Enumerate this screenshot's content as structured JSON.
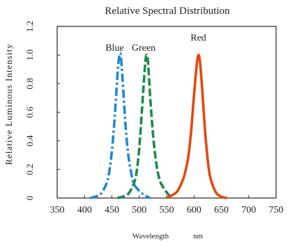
{
  "chart_data": {
    "type": "line",
    "title": "Relative Spectral Distribution",
    "xlabel": "Wavelength",
    "xlabel_unit": "nm",
    "ylabel": "Relative Luminous Intensity",
    "xlim": [
      350,
      750
    ],
    "ylim": [
      0,
      1.2
    ],
    "xticks": [
      350,
      400,
      450,
      500,
      550,
      600,
      650,
      700,
      750
    ],
    "yticks": [
      {
        "value": 0,
        "label": "0"
      },
      {
        "value": 0.2,
        "label": "0.2"
      },
      {
        "value": 0.4,
        "label": "0.4"
      },
      {
        "value": 0.6,
        "label": "0.6"
      },
      {
        "value": 0.8,
        "label": "0.8"
      },
      {
        "value": 1.0,
        "label": "1.0"
      },
      {
        "value": 1.2,
        "label": "1.2"
      }
    ],
    "grid": false,
    "series": [
      {
        "name": "Blue",
        "color": "#1f88d4",
        "dash": "dash-dot",
        "x": [
          410,
          420,
          430,
          440,
          445,
          450,
          455,
          460,
          463,
          466,
          470,
          475,
          480,
          485,
          490,
          500,
          510,
          520
        ],
        "y": [
          0.0,
          0.01,
          0.03,
          0.1,
          0.18,
          0.33,
          0.56,
          0.85,
          0.98,
          1.0,
          0.8,
          0.5,
          0.3,
          0.18,
          0.1,
          0.05,
          0.02,
          0.0
        ]
      },
      {
        "name": "Green",
        "color": "#1a8c4a",
        "dash": "dashed",
        "x": [
          460,
          470,
          480,
          490,
          495,
          500,
          505,
          510,
          513,
          516,
          520,
          525,
          530,
          535,
          540,
          550,
          560
        ],
        "y": [
          0.0,
          0.01,
          0.03,
          0.1,
          0.18,
          0.35,
          0.62,
          0.9,
          1.0,
          0.95,
          0.7,
          0.45,
          0.27,
          0.16,
          0.1,
          0.04,
          0.0
        ]
      },
      {
        "name": "Red",
        "color": "#e6470f",
        "dash": "solid",
        "x": [
          550,
          560,
          570,
          580,
          585,
          590,
          595,
          600,
          605,
          608,
          611,
          615,
          620,
          625,
          630,
          640,
          650,
          660
        ],
        "y": [
          0.0,
          0.02,
          0.05,
          0.13,
          0.2,
          0.3,
          0.48,
          0.72,
          0.93,
          1.0,
          0.95,
          0.76,
          0.48,
          0.27,
          0.14,
          0.04,
          0.01,
          0.0
        ]
      }
    ],
    "annotations": [
      {
        "text": "Blue",
        "x": 455,
        "y": 1.01
      },
      {
        "text": "Green",
        "x": 508,
        "y": 1.01
      },
      {
        "text": "Red",
        "x": 608,
        "y": 1.08
      }
    ]
  }
}
